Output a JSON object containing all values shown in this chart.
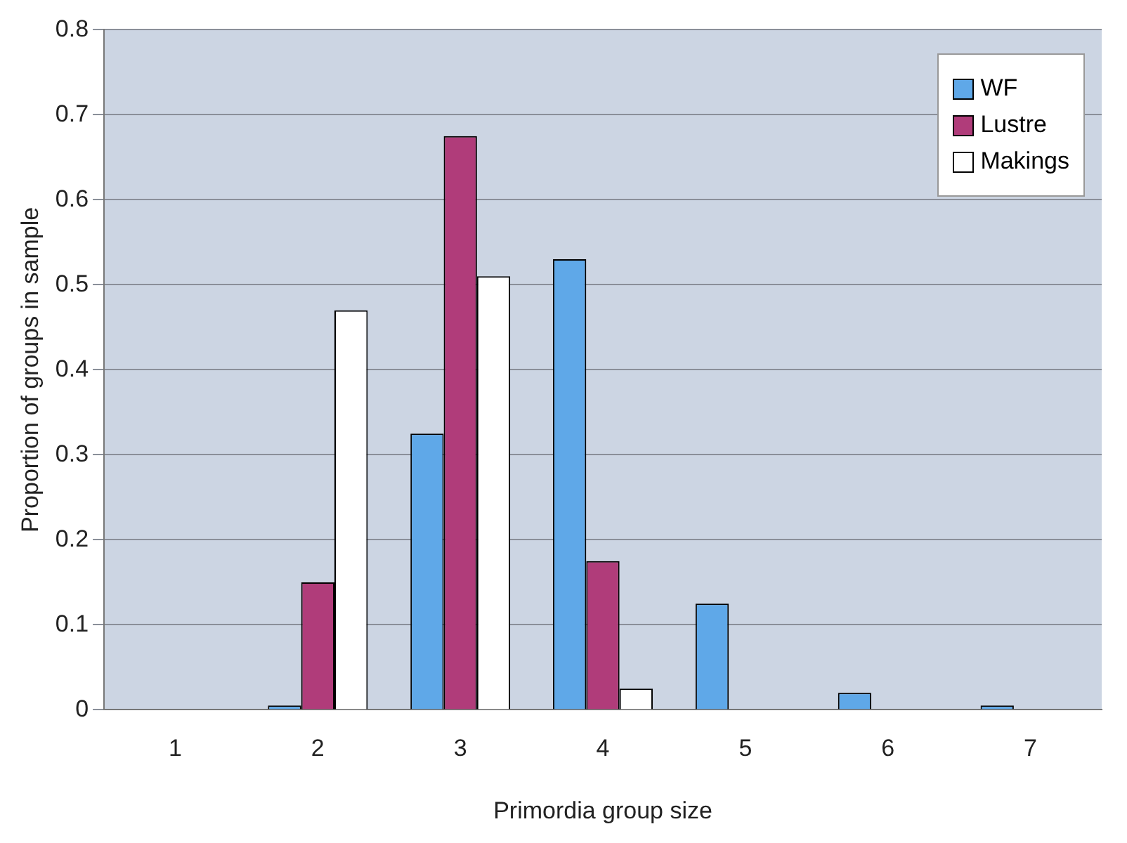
{
  "chart_data": {
    "type": "bar",
    "xlabel": "Primordia group size",
    "ylabel": "Proportion of groups in sample",
    "categories": [
      "1",
      "2",
      "3",
      "4",
      "5",
      "6",
      "7"
    ],
    "series": [
      {
        "name": "WF",
        "color": "#5fa8e8",
        "values": [
          0,
          0.005,
          0.325,
          0.53,
          0.125,
          0.02,
          0.005
        ]
      },
      {
        "name": "Lustre",
        "color": "#b03c7a",
        "values": [
          0,
          0.15,
          0.675,
          0.175,
          0,
          0,
          0
        ]
      },
      {
        "name": "Makings",
        "color": "#ffffff",
        "values": [
          0,
          0.47,
          0.51,
          0.025,
          0,
          0,
          0
        ]
      }
    ],
    "ylim": [
      0,
      0.8
    ],
    "yticks": [
      0,
      0.1,
      0.2,
      0.3,
      0.4,
      0.5,
      0.6,
      0.7,
      0.8
    ],
    "grid": "y",
    "legend": "top right"
  }
}
